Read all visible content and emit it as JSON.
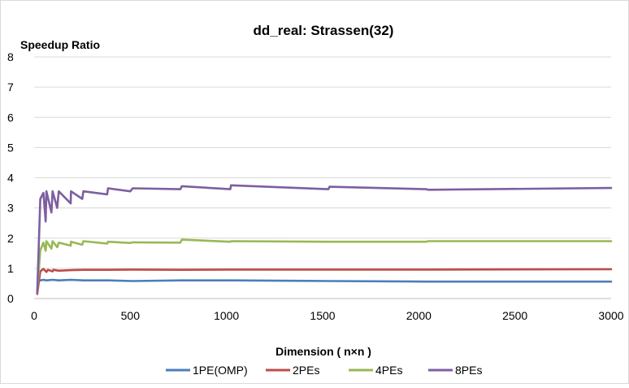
{
  "chart_data": {
    "type": "line",
    "title": "dd_real: Strassen(32)",
    "xlabel": "Dimension ( n×n )",
    "ylabel": "Speedup Ratio",
    "xlim": [
      0,
      3000
    ],
    "ylim": [
      0,
      8
    ],
    "xticks": [
      0,
      500,
      1000,
      1500,
      2000,
      2500,
      3000
    ],
    "yticks": [
      0,
      1,
      2,
      3,
      4,
      5,
      6,
      7,
      8
    ],
    "grid": "horizontal",
    "legend": "bottom",
    "series": [
      {
        "name": "1PE(OMP)",
        "color": "#4a7ebb",
        "x": [
          32,
          48,
          64,
          96,
          128,
          192,
          256,
          384,
          512,
          768,
          1024,
          1536,
          2048,
          3000
        ],
        "y": [
          0.6,
          0.62,
          0.6,
          0.62,
          0.6,
          0.62,
          0.6,
          0.6,
          0.58,
          0.6,
          0.6,
          0.58,
          0.56,
          0.56
        ]
      },
      {
        "name": "2PEs",
        "color": "#be4b48",
        "x": [
          16,
          32,
          48,
          64,
          72,
          96,
          100,
          128,
          192,
          256,
          384,
          512,
          768,
          1024,
          1536,
          2048,
          3000
        ],
        "y": [
          0.15,
          0.9,
          0.98,
          0.88,
          0.95,
          0.9,
          0.95,
          0.92,
          0.94,
          0.95,
          0.95,
          0.96,
          0.95,
          0.96,
          0.96,
          0.96,
          0.97
        ],
        "x_raw_note": ""
      },
      {
        "name": "4PEs",
        "color": "#98b954",
        "x": [
          16,
          32,
          48,
          60,
          64,
          90,
          96,
          120,
          128,
          190,
          192,
          250,
          256,
          380,
          384,
          500,
          512,
          760,
          768,
          1020,
          1024,
          1530,
          1536,
          2040,
          2048,
          3000
        ],
        "y": [
          0.25,
          1.6,
          1.85,
          1.58,
          1.9,
          1.65,
          1.9,
          1.7,
          1.85,
          1.75,
          1.88,
          1.78,
          1.9,
          1.82,
          1.88,
          1.84,
          1.86,
          1.85,
          1.95,
          1.88,
          1.9,
          1.88,
          1.88,
          1.88,
          1.9,
          1.9
        ]
      },
      {
        "name": "8PEs",
        "color": "#7d5fa0",
        "x": [
          16,
          32,
          48,
          60,
          64,
          90,
          96,
          120,
          128,
          190,
          192,
          250,
          256,
          380,
          384,
          500,
          512,
          760,
          768,
          1020,
          1024,
          1530,
          1536,
          2040,
          2048,
          3000
        ],
        "y": [
          0.2,
          3.3,
          3.5,
          2.55,
          3.55,
          2.85,
          3.55,
          3.0,
          3.55,
          3.15,
          3.55,
          3.3,
          3.55,
          3.45,
          3.65,
          3.55,
          3.65,
          3.62,
          3.72,
          3.62,
          3.75,
          3.62,
          3.7,
          3.62,
          3.6,
          3.66
        ]
      }
    ]
  }
}
